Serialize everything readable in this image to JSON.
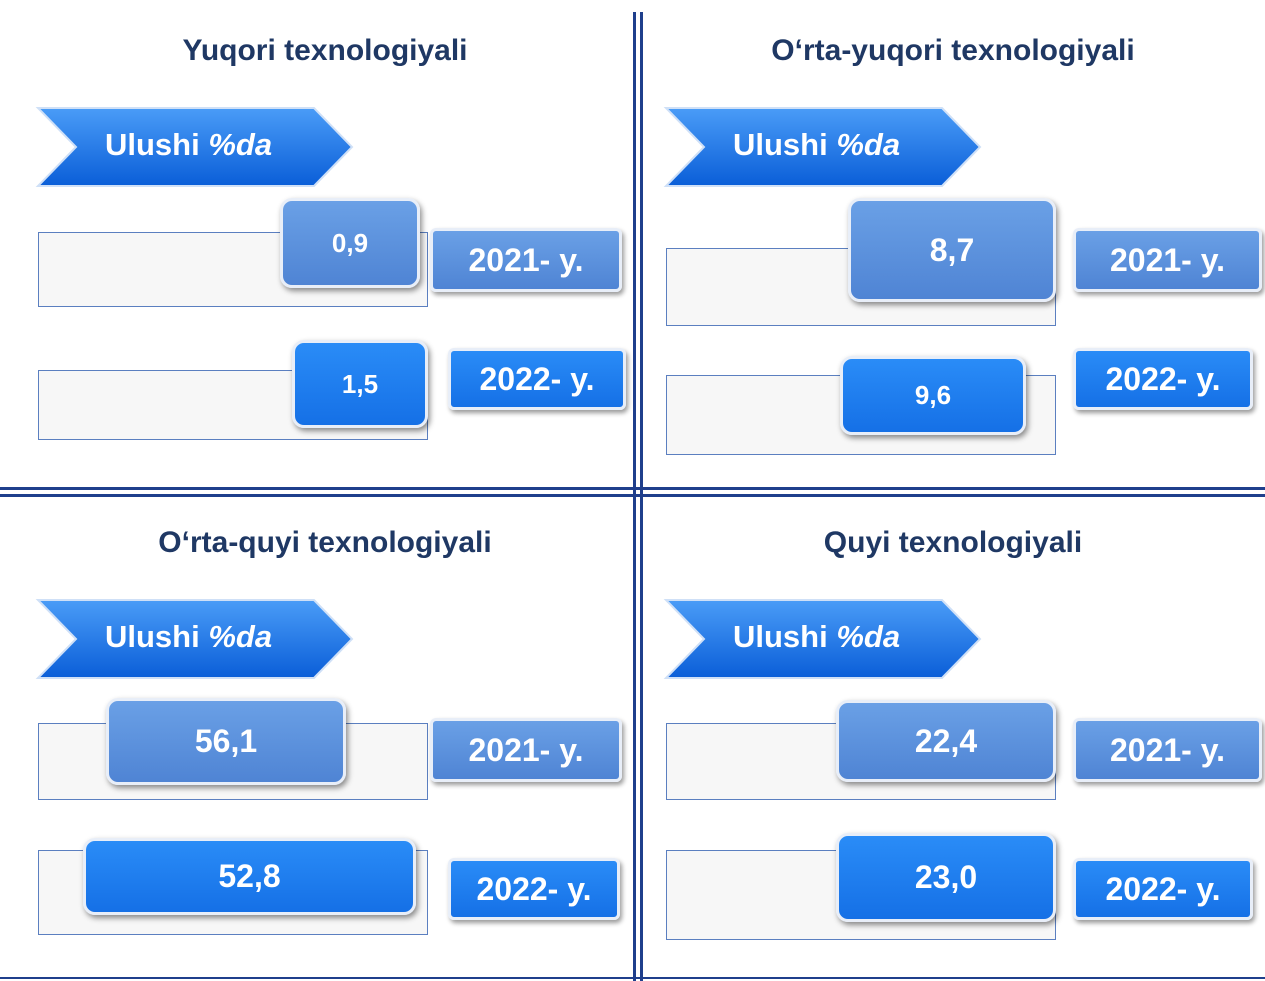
{
  "panels": [
    {
      "title": "Yuqori texnologiyali",
      "label": {
        "text": "Ulushi",
        "unit": "%da"
      },
      "rows": [
        {
          "value": "0,9",
          "year": "2021- y."
        },
        {
          "value": "1,5",
          "year": "2022- y."
        }
      ]
    },
    {
      "title": "O‘rta-yuqori texnologiyali",
      "label": {
        "text": "Ulushi",
        "unit": "%da"
      },
      "rows": [
        {
          "value": "8,7",
          "year": "2021- y."
        },
        {
          "value": "9,6",
          "year": "2022- y."
        }
      ]
    },
    {
      "title": "O‘rta-quyi texnologiyali",
      "label": {
        "text": "Ulushi",
        "unit": "%da"
      },
      "rows": [
        {
          "value": "56,1",
          "year": "2021- y."
        },
        {
          "value": "52,8",
          "year": "2022- y."
        }
      ]
    },
    {
      "title": "Quyi texnologiyali",
      "label": {
        "text": "Ulushi",
        "unit": "%da"
      },
      "rows": [
        {
          "value": "22,4",
          "year": "2021- y."
        },
        {
          "value": "23,0",
          "year": "2022- y."
        }
      ]
    }
  ]
}
